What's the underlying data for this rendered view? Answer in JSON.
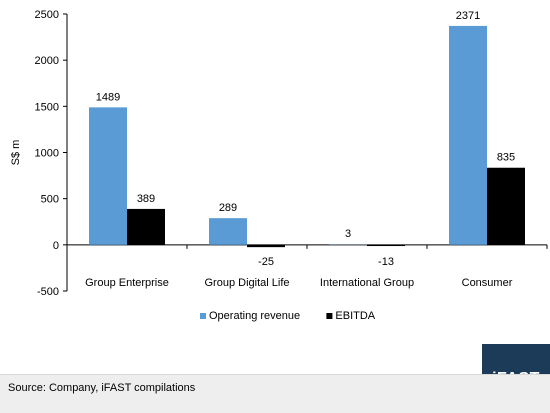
{
  "chart_data": {
    "type": "bar",
    "title": "",
    "xlabel": "",
    "ylabel": "S$ m",
    "ylim": [
      -500,
      2500
    ],
    "yticks": [
      -500,
      0,
      500,
      1000,
      1500,
      2000,
      2500
    ],
    "grid": false,
    "legend_position": "bottom-center",
    "categories": [
      "Group Enterprise",
      "Group Digital Life",
      "International Group",
      "Consumer"
    ],
    "series": [
      {
        "name": "Operating revenue",
        "color": "#5b9bd5",
        "values": [
          1489,
          289,
          3,
          2371
        ]
      },
      {
        "name": "EBITDA",
        "color": "#000000",
        "values": [
          389,
          -25,
          -13,
          835
        ]
      }
    ]
  },
  "footer": {
    "source": "Source: Company, iFAST compilations"
  },
  "brand": {
    "logo_text": "iFAST",
    "color": "#1b3b59"
  }
}
